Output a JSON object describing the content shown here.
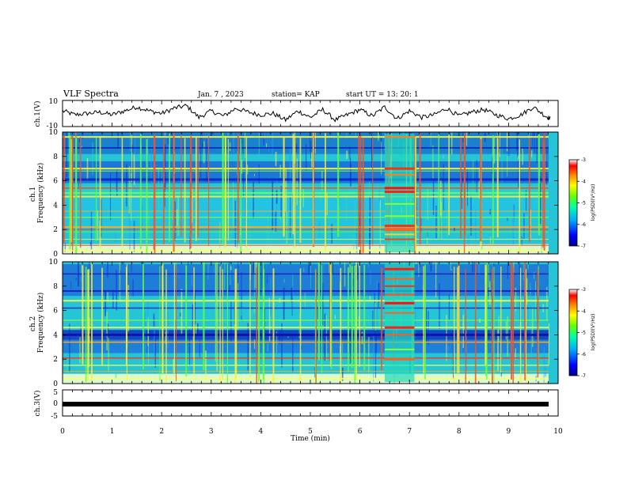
{
  "header": {
    "title": "VLF Spectra",
    "date": "Jan. 7 , 2023",
    "station": "station= KAP",
    "start": "start UT =  13: 20: 1"
  },
  "chart_data": [
    {
      "id": "ch1_waveform",
      "type": "line",
      "ylabel": "ch.1(V)",
      "ylim": [
        -10,
        10
      ],
      "yticks": [
        "10",
        "-10"
      ],
      "xlim": [
        0,
        9.85
      ],
      "x": [
        0,
        0.25,
        0.5,
        0.75,
        1,
        1.25,
        1.5,
        1.75,
        2,
        2.25,
        2.5,
        2.75,
        3,
        3.25,
        3.5,
        3.75,
        4,
        4.25,
        4.5,
        4.75,
        5,
        5.25,
        5.5,
        5.75,
        6,
        6.25,
        6.5,
        6.75,
        7,
        7.25,
        7.5,
        7.75,
        8,
        8.25,
        8.5,
        8.75,
        9,
        9.25,
        9.5,
        9.75,
        9.85
      ],
      "y": [
        2,
        -1,
        0,
        1,
        -1,
        2,
        5,
        2,
        0,
        4,
        6,
        -3,
        2,
        -2,
        4,
        1,
        -1,
        0,
        -5,
        2,
        -3,
        3,
        -5,
        -1,
        3,
        -2,
        5,
        -4,
        2,
        -3,
        -1,
        4,
        -2,
        1,
        3,
        -1,
        -4,
        -1,
        5,
        -2,
        -4
      ],
      "color": "#000000"
    },
    {
      "id": "ch1_spectrogram",
      "type": "heatmap",
      "ylabel": "ch.1\nFrequency (kHz)",
      "ylim": [
        0,
        10
      ],
      "yticks": [
        "0",
        "2",
        "4",
        "6",
        "8",
        "10"
      ],
      "note": "time-frequency power spectrogram; strong broadband emission at 6.5-7.1 min",
      "colorbar": {
        "label": "log(PSD)(V²/Hz)",
        "range": [
          -7,
          -3
        ],
        "ticks": [
          "-3",
          "-4",
          "-5",
          "-6",
          "-7"
        ],
        "colors": [
          "#00008b",
          "#0000ff",
          "#00aaff",
          "#00ffaa",
          "#66ff00",
          "#ffff00",
          "#ff8800",
          "#ff0000",
          "#ffffff"
        ]
      }
    },
    {
      "id": "ch2_spectrogram",
      "type": "heatmap",
      "ylabel": "ch.2\nFrequency (kHz)",
      "ylim": [
        0,
        10
      ],
      "yticks": [
        "0",
        "2",
        "4",
        "6",
        "8",
        "10"
      ],
      "colorbar": {
        "label": "log(PSD)(V²/Hz)",
        "range": [
          -7,
          -3
        ],
        "ticks": [
          "-3",
          "-4",
          "-5",
          "-6",
          "-7"
        ],
        "colors": [
          "#00008b",
          "#0000ff",
          "#00aaff",
          "#00ffaa",
          "#66ff00",
          "#ffff00",
          "#ff8800",
          "#ff0000",
          "#ffffff"
        ]
      }
    },
    {
      "id": "ch3_waveform",
      "type": "line",
      "ylabel": "ch.3(V)",
      "ylim": [
        -5,
        5
      ],
      "yticks": [
        "5",
        "0",
        "-5"
      ],
      "x": [
        0,
        9.85
      ],
      "y": [
        0,
        0
      ],
      "xlabel": "Time (min)",
      "xticks": [
        "0",
        "1",
        "2",
        "3",
        "4",
        "5",
        "6",
        "7",
        "8",
        "9",
        "10"
      ],
      "xlim": [
        0,
        10
      ]
    }
  ],
  "colors": {
    "spectro_bg": "#26c8d8",
    "burst": "#ff2a1a",
    "band_yellow": "#e8ff30",
    "band_blue": "#1a30e0"
  }
}
